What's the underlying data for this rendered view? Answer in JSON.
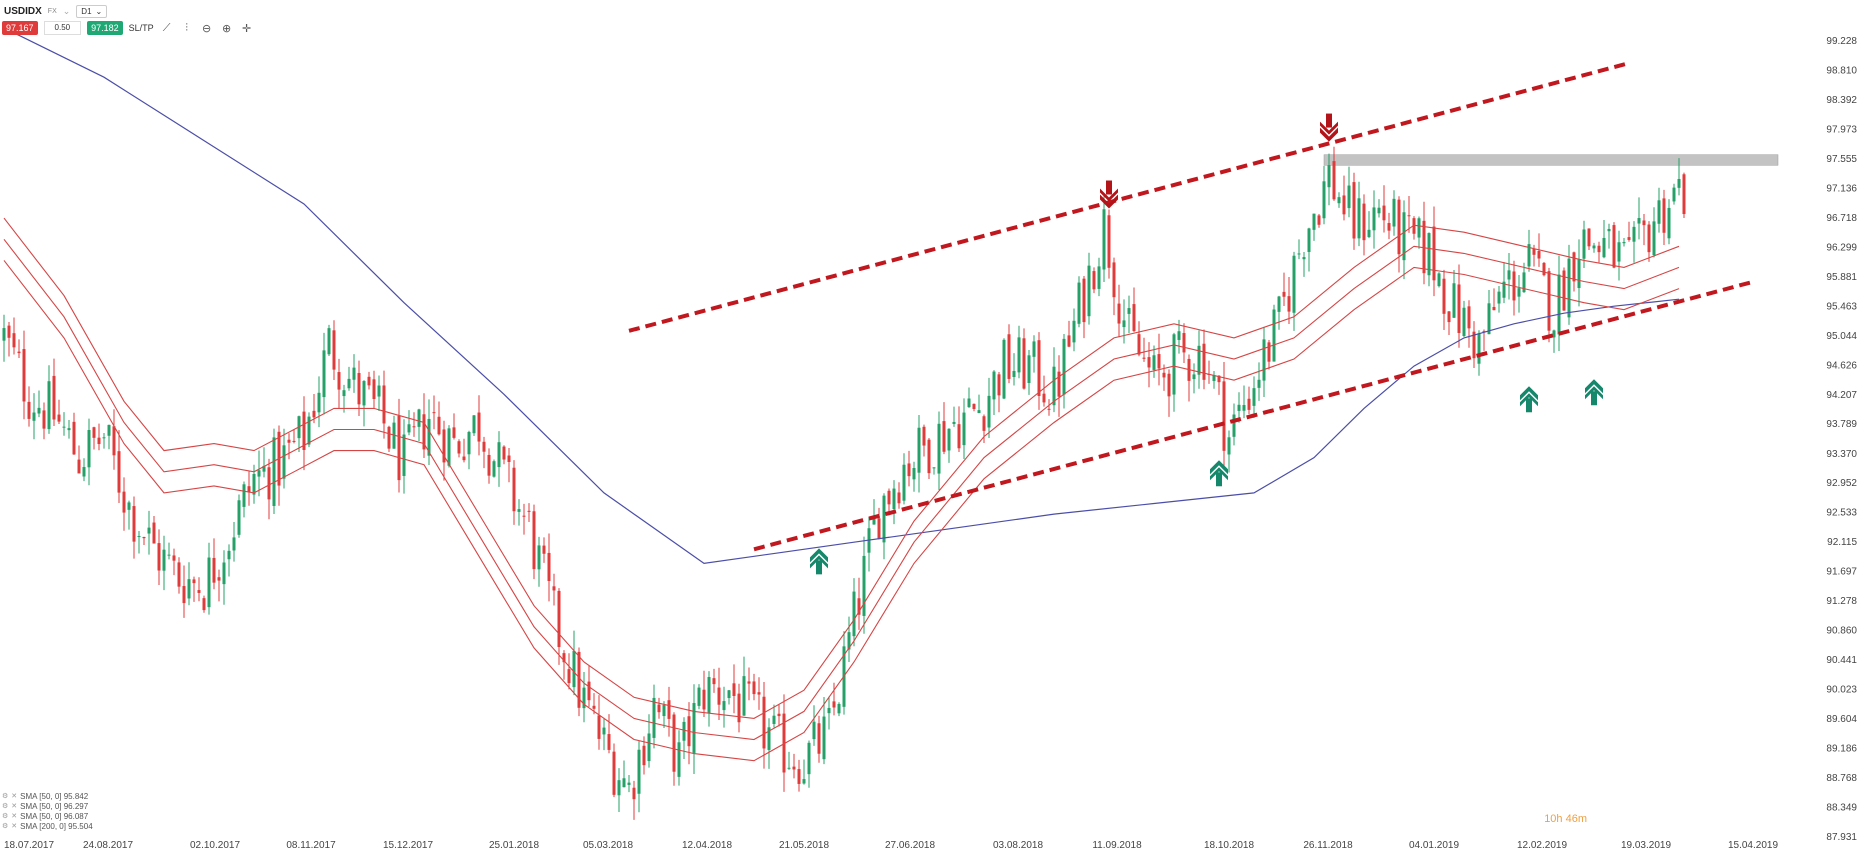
{
  "toolbar": {
    "symbol": "USDIDX",
    "market": "FX",
    "interval": "D1",
    "sell_price": "97.167",
    "spread": "0.50",
    "buy_price": "97.182",
    "sltp_label": "SL/TP",
    "icons": [
      "trend-line-icon",
      "indicators-icon",
      "zoom-out-icon",
      "zoom-in-icon",
      "crosshair-icon"
    ]
  },
  "legend": [
    {
      "text": "SMA [50, 0] 95.842"
    },
    {
      "text": "SMA [50, 0] 96.297"
    },
    {
      "text": "SMA [50, 0] 96.087"
    },
    {
      "text": "SMA [200, 0] 95.504"
    }
  ],
  "timer": "10h 46m",
  "colors": {
    "up": "#26a069",
    "down": "#e03b3b",
    "sma50": "#d64545",
    "sma200": "#4b4ea8",
    "channel": "#c0181e",
    "zone": "#b8b8b8"
  },
  "chart_data": {
    "type": "candlestick",
    "y_ticks": [
      "99.228",
      "98.810",
      "98.392",
      "97.973",
      "97.555",
      "97.136",
      "96.718",
      "96.299",
      "95.881",
      "95.463",
      "95.044",
      "94.626",
      "94.207",
      "93.789",
      "93.370",
      "92.952",
      "92.533",
      "92.115",
      "91.697",
      "91.278",
      "90.860",
      "90.441",
      "90.023",
      "89.604",
      "89.186",
      "88.768",
      "88.349",
      "87.931"
    ],
    "ylim": [
      87.931,
      99.228
    ],
    "x_ticks": [
      "18.07.2017",
      "24.08.2017",
      "02.10.2017",
      "08.11.2017",
      "15.12.2017",
      "25.01.2018",
      "05.03.2018",
      "12.04.2018",
      "21.05.2018",
      "27.06.2018",
      "03.08.2018",
      "11.09.2018",
      "18.10.2018",
      "26.11.2018",
      "04.01.2019",
      "12.02.2019",
      "19.03.2019",
      "15.04.2019"
    ],
    "close_path": [
      [
        0,
        95.0
      ],
      [
        5,
        94.2
      ],
      [
        10,
        93.9
      ],
      [
        15,
        93.3
      ],
      [
        20,
        93.6
      ],
      [
        25,
        92.6
      ],
      [
        30,
        92.0
      ],
      [
        35,
        91.6
      ],
      [
        40,
        91.5
      ],
      [
        45,
        92.2
      ],
      [
        50,
        93.0
      ],
      [
        55,
        93.2
      ],
      [
        60,
        93.6
      ],
      [
        65,
        94.9
      ],
      [
        70,
        94.3
      ],
      [
        75,
        93.9
      ],
      [
        80,
        93.2
      ],
      [
        85,
        93.9
      ],
      [
        90,
        93.5
      ],
      [
        95,
        93.8
      ],
      [
        100,
        93.0
      ],
      [
        105,
        92.3
      ],
      [
        110,
        91.0
      ],
      [
        115,
        90.0
      ],
      [
        120,
        89.2
      ],
      [
        125,
        88.6
      ],
      [
        130,
        89.8
      ],
      [
        135,
        89.0
      ],
      [
        140,
        90.0
      ],
      [
        145,
        90.0
      ],
      [
        150,
        89.6
      ],
      [
        155,
        89.2
      ],
      [
        160,
        89.0
      ],
      [
        165,
        89.4
      ],
      [
        170,
        91.0
      ],
      [
        175,
        92.6
      ],
      [
        180,
        93.2
      ],
      [
        185,
        93.5
      ],
      [
        190,
        93.8
      ],
      [
        195,
        94.0
      ],
      [
        200,
        94.6
      ],
      [
        205,
        94.6
      ],
      [
        210,
        94.2
      ],
      [
        215,
        95.4
      ],
      [
        220,
        96.6
      ],
      [
        225,
        95.0
      ],
      [
        230,
        94.4
      ],
      [
        235,
        94.7
      ],
      [
        240,
        94.8
      ],
      [
        245,
        93.6
      ],
      [
        250,
        94.4
      ],
      [
        255,
        95.2
      ],
      [
        260,
        96.5
      ],
      [
        265,
        97.3
      ],
      [
        270,
        96.6
      ],
      [
        275,
        96.8
      ],
      [
        280,
        96.4
      ],
      [
        285,
        96.2
      ],
      [
        290,
        95.4
      ],
      [
        295,
        94.9
      ],
      [
        300,
        95.7
      ],
      [
        305,
        96.0
      ],
      [
        310,
        95.4
      ],
      [
        315,
        96.4
      ],
      [
        320,
        96.3
      ],
      [
        325,
        96.0
      ],
      [
        330,
        96.7
      ],
      [
        335,
        97.1
      ]
    ],
    "sma50_a": [
      [
        0,
        96.7
      ],
      [
        12,
        95.6
      ],
      [
        24,
        94.1
      ],
      [
        32,
        93.4
      ],
      [
        42,
        93.5
      ],
      [
        50,
        93.4
      ],
      [
        58,
        93.7
      ],
      [
        66,
        94.0
      ],
      [
        74,
        94.0
      ],
      [
        84,
        93.8
      ],
      [
        95,
        92.5
      ],
      [
        106,
        91.2
      ],
      [
        116,
        90.4
      ],
      [
        126,
        89.9
      ],
      [
        138,
        89.7
      ],
      [
        150,
        89.6
      ],
      [
        160,
        90.0
      ],
      [
        170,
        91.0
      ],
      [
        182,
        92.4
      ],
      [
        196,
        93.6
      ],
      [
        210,
        94.4
      ],
      [
        222,
        95.0
      ],
      [
        234,
        95.2
      ],
      [
        246,
        95.0
      ],
      [
        258,
        95.3
      ],
      [
        270,
        96.0
      ],
      [
        282,
        96.6
      ],
      [
        292,
        96.5
      ],
      [
        304,
        96.3
      ],
      [
        316,
        96.1
      ],
      [
        324,
        96.0
      ],
      [
        335,
        96.3
      ]
    ],
    "sma50_b": [
      [
        0,
        96.4
      ],
      [
        12,
        95.3
      ],
      [
        24,
        93.8
      ],
      [
        32,
        93.1
      ],
      [
        42,
        93.2
      ],
      [
        50,
        93.1
      ],
      [
        58,
        93.4
      ],
      [
        66,
        93.7
      ],
      [
        74,
        93.7
      ],
      [
        84,
        93.5
      ],
      [
        95,
        92.2
      ],
      [
        106,
        90.9
      ],
      [
        116,
        90.1
      ],
      [
        126,
        89.6
      ],
      [
        138,
        89.4
      ],
      [
        150,
        89.3
      ],
      [
        160,
        89.7
      ],
      [
        170,
        90.7
      ],
      [
        182,
        92.1
      ],
      [
        196,
        93.3
      ],
      [
        210,
        94.1
      ],
      [
        222,
        94.7
      ],
      [
        234,
        94.9
      ],
      [
        246,
        94.7
      ],
      [
        258,
        95.0
      ],
      [
        270,
        95.7
      ],
      [
        282,
        96.3
      ],
      [
        292,
        96.2
      ],
      [
        304,
        96.0
      ],
      [
        316,
        95.8
      ],
      [
        324,
        95.7
      ],
      [
        335,
        96.0
      ]
    ],
    "sma50_c": [
      [
        0,
        96.1
      ],
      [
        12,
        95.0
      ],
      [
        24,
        93.5
      ],
      [
        32,
        92.8
      ],
      [
        42,
        92.9
      ],
      [
        50,
        92.8
      ],
      [
        58,
        93.1
      ],
      [
        66,
        93.4
      ],
      [
        74,
        93.4
      ],
      [
        84,
        93.2
      ],
      [
        95,
        91.9
      ],
      [
        106,
        90.6
      ],
      [
        116,
        89.8
      ],
      [
        126,
        89.3
      ],
      [
        138,
        89.1
      ],
      [
        150,
        89.0
      ],
      [
        160,
        89.4
      ],
      [
        170,
        90.4
      ],
      [
        182,
        91.8
      ],
      [
        196,
        93.0
      ],
      [
        210,
        93.8
      ],
      [
        222,
        94.4
      ],
      [
        234,
        94.6
      ],
      [
        246,
        94.4
      ],
      [
        258,
        94.7
      ],
      [
        270,
        95.4
      ],
      [
        282,
        96.0
      ],
      [
        292,
        95.9
      ],
      [
        304,
        95.7
      ],
      [
        316,
        95.5
      ],
      [
        324,
        95.4
      ],
      [
        335,
        95.7
      ]
    ],
    "sma200": [
      [
        0,
        99.4
      ],
      [
        20,
        98.7
      ],
      [
        40,
        97.8
      ],
      [
        60,
        96.9
      ],
      [
        80,
        95.5
      ],
      [
        100,
        94.2
      ],
      [
        120,
        92.8
      ],
      [
        140,
        91.8
      ],
      [
        155,
        91.95
      ],
      [
        170,
        92.1
      ],
      [
        190,
        92.3
      ],
      [
        210,
        92.5
      ],
      [
        230,
        92.65
      ],
      [
        250,
        92.8
      ],
      [
        262,
        93.3
      ],
      [
        272,
        94.0
      ],
      [
        282,
        94.6
      ],
      [
        292,
        95.0
      ],
      [
        302,
        95.2
      ],
      [
        312,
        95.35
      ],
      [
        322,
        95.45
      ],
      [
        335,
        95.55
      ]
    ],
    "channel_upper": [
      [
        125,
        95.1
      ],
      [
        325,
        98.9
      ]
    ],
    "channel_lower": [
      [
        150,
        92.0
      ],
      [
        350,
        95.8
      ]
    ],
    "resistance_zone": [
      97.45,
      97.6
    ],
    "arrows_down": [
      [
        221,
        96.95
      ],
      [
        265,
        97.9
      ]
    ],
    "arrows_up": [
      [
        163,
        91.9
      ],
      [
        243,
        93.15
      ],
      [
        305,
        94.2
      ],
      [
        318,
        94.3
      ]
    ]
  }
}
